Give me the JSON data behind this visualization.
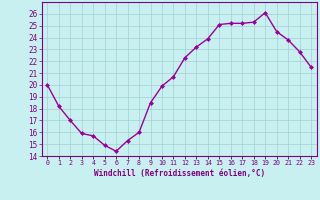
{
  "x": [
    0,
    1,
    2,
    3,
    4,
    5,
    6,
    7,
    8,
    9,
    10,
    11,
    12,
    13,
    14,
    15,
    16,
    17,
    18,
    19,
    20,
    21,
    22,
    23
  ],
  "y": [
    20.0,
    18.2,
    17.0,
    15.9,
    15.7,
    14.9,
    14.4,
    15.3,
    16.0,
    18.5,
    19.9,
    20.7,
    22.3,
    23.2,
    23.9,
    25.1,
    25.2,
    25.2,
    25.3,
    26.1,
    24.5,
    23.8,
    22.8,
    21.5
  ],
  "line_color": "#9B009B",
  "marker_color": "#9B009B",
  "bg_color": "#c8f0f0",
  "grid_color": "#a0d0d0",
  "xlabel": "Windchill (Refroidissement éolien,°C)",
  "ylim": [
    14,
    27
  ],
  "yticks": [
    14,
    15,
    16,
    17,
    18,
    19,
    20,
    21,
    22,
    23,
    24,
    25,
    26
  ],
  "xlim": [
    -0.5,
    23.5
  ],
  "xtick_labels": [
    "0",
    "1",
    "2",
    "3",
    "4",
    "5",
    "6",
    "7",
    "8",
    "9",
    "10",
    "11",
    "12",
    "13",
    "14",
    "15",
    "16",
    "17",
    "18",
    "19",
    "20",
    "21",
    "22",
    "23"
  ],
  "axis_color": "#800080",
  "tick_color": "#800080",
  "label_color": "#800080"
}
